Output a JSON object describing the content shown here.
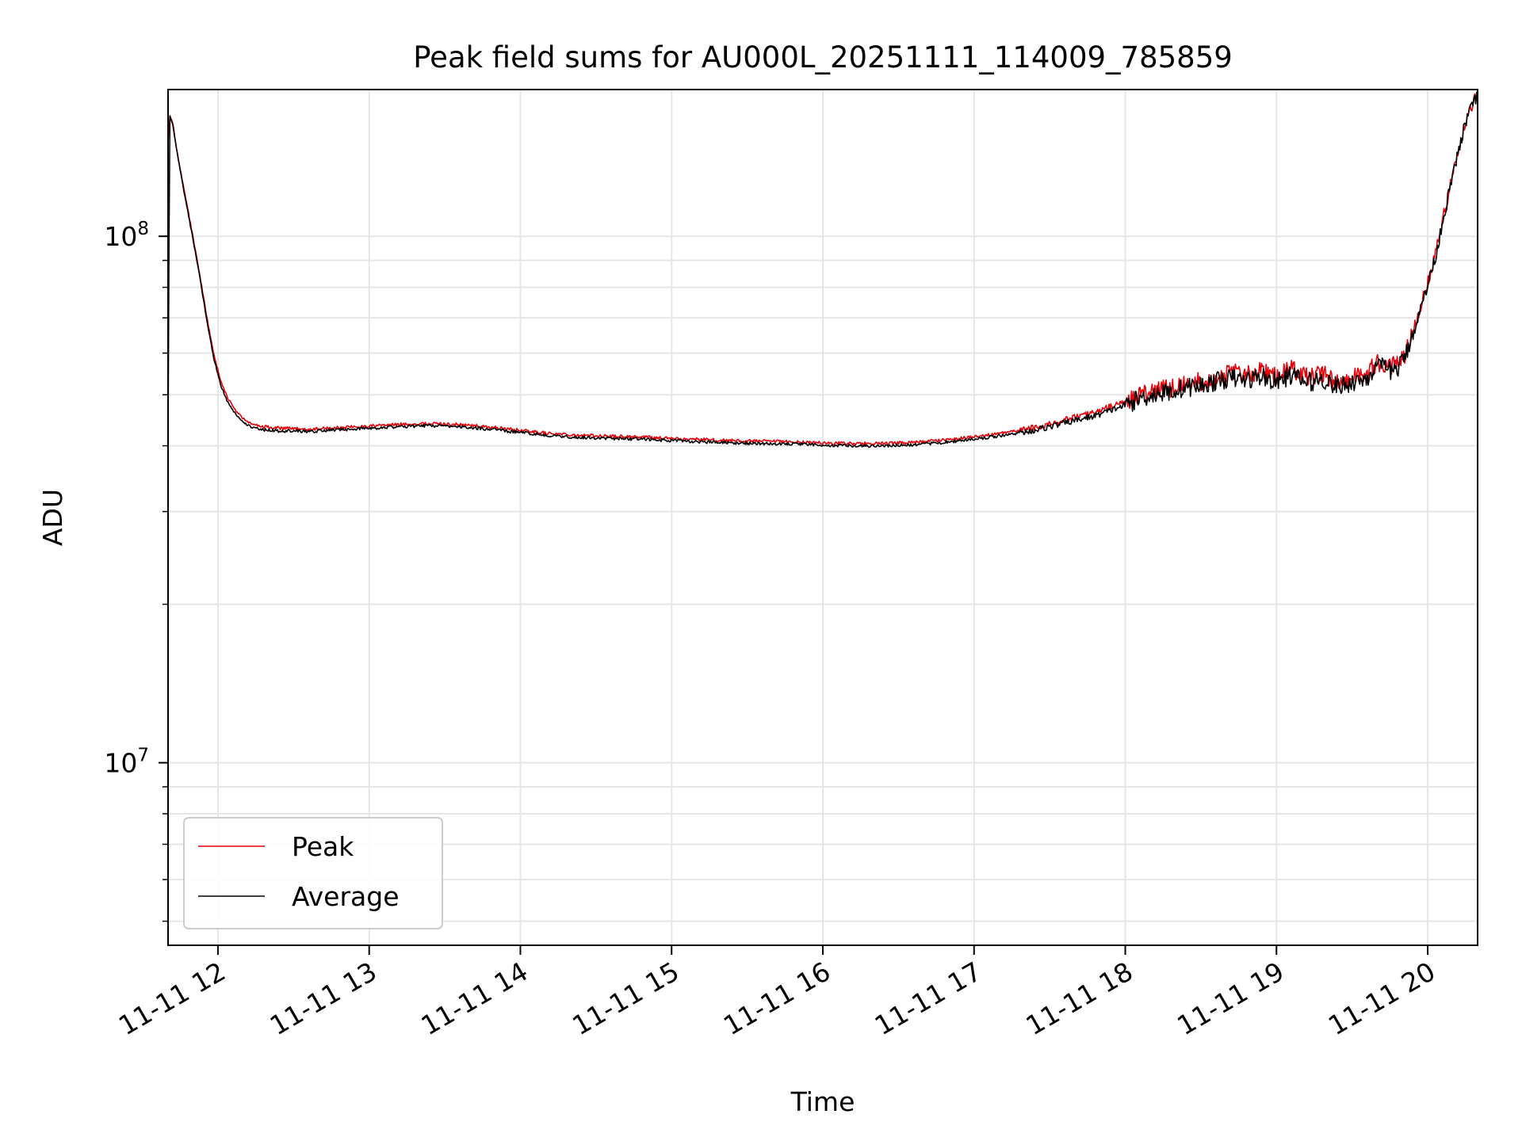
{
  "chart_data": {
    "type": "line",
    "title": "Peak field sums for AU000L_20251111_114009_785859",
    "xlabel": "Time",
    "ylabel": "ADU",
    "yscale": "log",
    "ylim": [
      4500000,
      190000000
    ],
    "xlim_hours": [
      11.67,
      20.33
    ],
    "grid": true,
    "legend_position": "lower-left",
    "x_ticks": [
      {
        "hour": 12,
        "label": "11-11 12"
      },
      {
        "hour": 13,
        "label": "11-11 13"
      },
      {
        "hour": 14,
        "label": "11-11 14"
      },
      {
        "hour": 15,
        "label": "11-11 15"
      },
      {
        "hour": 16,
        "label": "11-11 16"
      },
      {
        "hour": 17,
        "label": "11-11 17"
      },
      {
        "hour": 18,
        "label": "11-11 18"
      },
      {
        "hour": 19,
        "label": "11-11 19"
      },
      {
        "hour": 20,
        "label": "11-11 20"
      }
    ],
    "y_ticks": [
      {
        "value": 10000000,
        "base": "10",
        "exp": "7"
      },
      {
        "value": 100000000,
        "base": "10",
        "exp": "8"
      }
    ],
    "series": [
      {
        "name": "Peak",
        "color": "#e8000b",
        "x": [
          11.67,
          11.68,
          11.7,
          11.73,
          11.77,
          11.82,
          11.87,
          11.92,
          11.97,
          12.02,
          12.07,
          12.12,
          12.17,
          12.22,
          12.3,
          12.4,
          12.6,
          12.8,
          13.0,
          13.2,
          13.4,
          13.6,
          13.8,
          14.0,
          14.2,
          14.4,
          14.6,
          14.8,
          15.0,
          15.2,
          15.4,
          15.6,
          15.8,
          16.0,
          16.2,
          16.4,
          16.6,
          16.8,
          17.0,
          17.2,
          17.4,
          17.6,
          17.8,
          18.0,
          18.1,
          18.2,
          18.3,
          18.4,
          18.5,
          18.6,
          18.7,
          18.8,
          18.9,
          19.0,
          19.1,
          19.2,
          19.3,
          19.4,
          19.5,
          19.6,
          19.65,
          19.7,
          19.75,
          19.8,
          19.85,
          19.9,
          19.95,
          20.0,
          20.05,
          20.1,
          20.15,
          20.2,
          20.25,
          20.3,
          20.33
        ],
        "y": [
          150000000,
          170000000,
          165000000,
          145000000,
          125000000,
          105000000,
          88000000,
          72000000,
          60000000,
          53000000,
          49000000,
          46500000,
          45000000,
          44000000,
          43500000,
          43200000,
          43000000,
          43300000,
          43600000,
          43900000,
          44100000,
          43900000,
          43400000,
          42800000,
          42200000,
          41900000,
          41700000,
          41600000,
          41300000,
          41100000,
          40900000,
          40800000,
          40700000,
          40500000,
          40400000,
          40400000,
          40600000,
          41000000,
          41600000,
          42300000,
          43300000,
          44800000,
          46300000,
          48500000,
          50000000,
          51000000,
          51500000,
          52500000,
          53000000,
          54000000,
          55000000,
          54500000,
          55500000,
          54000000,
          56000000,
          54000000,
          55000000,
          53000000,
          54000000,
          55000000,
          57000000,
          57500000,
          56500000,
          57000000,
          60000000,
          66000000,
          73000000,
          82000000,
          92000000,
          108000000,
          125000000,
          145000000,
          165000000,
          180000000,
          186000000
        ]
      },
      {
        "name": "Average",
        "color": "#000000",
        "x": [
          11.67,
          11.68,
          11.7,
          11.73,
          11.77,
          11.82,
          11.87,
          11.92,
          11.97,
          12.02,
          12.07,
          12.12,
          12.17,
          12.22,
          12.3,
          12.4,
          12.6,
          12.8,
          13.0,
          13.2,
          13.4,
          13.6,
          13.8,
          14.0,
          14.2,
          14.4,
          14.6,
          14.8,
          15.0,
          15.2,
          15.4,
          15.6,
          15.8,
          16.0,
          16.2,
          16.4,
          16.6,
          16.8,
          17.0,
          17.2,
          17.4,
          17.6,
          17.8,
          18.0,
          18.1,
          18.2,
          18.3,
          18.4,
          18.5,
          18.6,
          18.7,
          18.8,
          18.9,
          19.0,
          19.1,
          19.2,
          19.3,
          19.4,
          19.5,
          19.6,
          19.65,
          19.7,
          19.75,
          19.8,
          19.85,
          19.9,
          19.95,
          20.0,
          20.05,
          20.1,
          20.15,
          20.2,
          20.25,
          20.3,
          20.33
        ],
        "y": [
          40000000,
          170000000,
          164000000,
          144000000,
          124000000,
          104000000,
          87000000,
          71000000,
          59000000,
          52000000,
          48000000,
          45800000,
          44300000,
          43400000,
          42900000,
          42700000,
          42600000,
          42900000,
          43200000,
          43500000,
          43700000,
          43500000,
          43000000,
          42400000,
          41800000,
          41500000,
          41300000,
          41200000,
          40900000,
          40700000,
          40500000,
          40400000,
          40300000,
          40100000,
          40000000,
          40000000,
          40200000,
          40600000,
          41200000,
          41900000,
          42800000,
          44200000,
          45600000,
          47800000,
          49200000,
          50200000,
          50600000,
          51600000,
          52000000,
          53000000,
          53800000,
          53300000,
          54200000,
          52800000,
          54600000,
          52600000,
          53600000,
          51800000,
          52800000,
          53800000,
          56000000,
          56500000,
          55500000,
          56000000,
          59000000,
          65000000,
          72000000,
          81000000,
          91000000,
          107000000,
          124000000,
          144000000,
          164000000,
          179000000,
          185000000
        ]
      }
    ]
  }
}
